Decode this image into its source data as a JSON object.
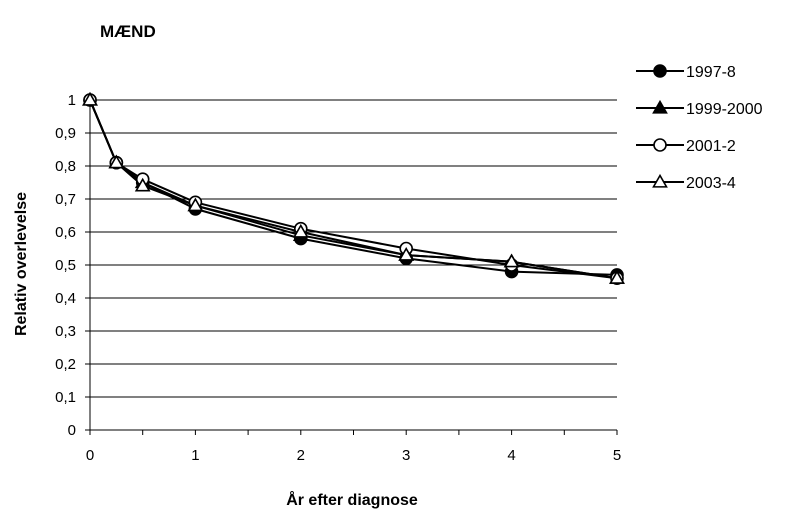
{
  "chart_data": {
    "type": "line",
    "title": "MÆND",
    "xlabel": "År efter diagnose",
    "ylabel": "Relativ overlevelse",
    "x": [
      0,
      0.25,
      0.5,
      1,
      2,
      3,
      4,
      5
    ],
    "xlim": [
      0,
      5
    ],
    "ylim": [
      0,
      1
    ],
    "x_ticks": [
      0,
      1,
      2,
      3,
      4,
      5
    ],
    "x_tick_labels": [
      "0",
      "1",
      "2",
      "3",
      "4",
      "5"
    ],
    "y_ticks": [
      0,
      0.1,
      0.2,
      0.3,
      0.4,
      0.5,
      0.6,
      0.7,
      0.8,
      0.9,
      1
    ],
    "y_tick_labels": [
      "0",
      "0,1",
      "0,2",
      "0,3",
      "0,4",
      "0,5",
      "0,6",
      "0,7",
      "0,8",
      "0,9",
      "1"
    ],
    "grid": "horizontal",
    "legend_position": "right",
    "series": [
      {
        "name": "1997-8",
        "marker": "circle-filled",
        "values": [
          1.0,
          0.81,
          0.75,
          0.67,
          0.58,
          0.52,
          0.48,
          0.47
        ]
      },
      {
        "name": "1999-2000",
        "marker": "triangle-filled",
        "values": [
          1.0,
          0.81,
          0.75,
          0.68,
          0.59,
          0.53,
          0.51,
          0.46
        ]
      },
      {
        "name": "2001-2",
        "marker": "circle-open",
        "values": [
          1.0,
          0.81,
          0.76,
          0.69,
          0.61,
          0.55,
          0.5,
          0.46
        ]
      },
      {
        "name": "2003-4",
        "marker": "triangle-open",
        "values": [
          1.0,
          0.81,
          0.74,
          0.68,
          0.6,
          0.53,
          0.51,
          0.46
        ]
      }
    ],
    "colors": {
      "line": "#000000",
      "grid": "#000000",
      "background": "#ffffff"
    }
  }
}
